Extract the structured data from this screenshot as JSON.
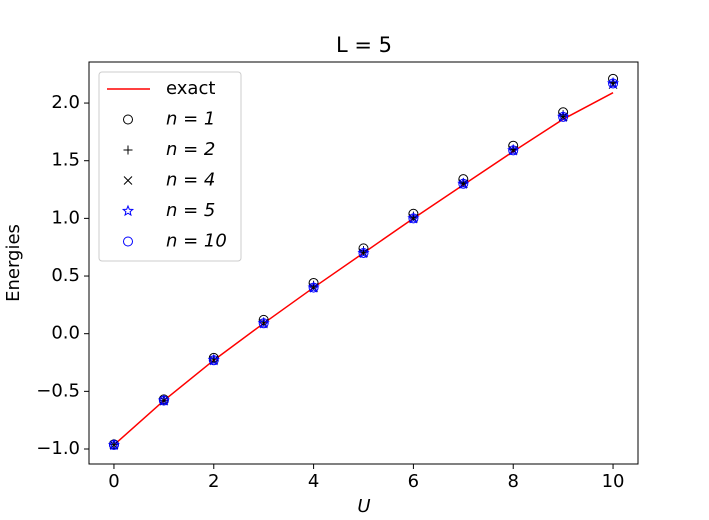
{
  "chart_data": {
    "type": "scatter",
    "title": "L = 5",
    "x_label": "U",
    "y_label": "Energies",
    "x": [
      0,
      1,
      2,
      3,
      4,
      5,
      6,
      7,
      8,
      9,
      10
    ],
    "series": [
      {
        "name": "exact",
        "style": "line",
        "color": "#ff0000",
        "values": [
          -0.965,
          -0.58,
          -0.23,
          0.09,
          0.4,
          0.7,
          1.0,
          1.29,
          1.58,
          1.86,
          2.09
        ]
      },
      {
        "name": "n = 1",
        "style": "circle",
        "color": "#000000",
        "values": [
          -0.96,
          -0.57,
          -0.21,
          0.12,
          0.44,
          0.74,
          1.04,
          1.34,
          1.63,
          1.92,
          2.21
        ]
      },
      {
        "name": "n = 2",
        "style": "plus",
        "color": "#000000",
        "values": [
          -0.96,
          -0.58,
          -0.22,
          0.1,
          0.42,
          0.72,
          1.02,
          1.31,
          1.6,
          1.9,
          2.18
        ]
      },
      {
        "name": "n = 4",
        "style": "x",
        "color": "#000000",
        "values": [
          -0.965,
          -0.58,
          -0.23,
          0.09,
          0.4,
          0.7,
          1.0,
          1.3,
          1.59,
          1.88,
          2.16
        ]
      },
      {
        "name": "n = 5",
        "style": "star",
        "color": "#0000ff",
        "values": [
          -0.965,
          -0.58,
          -0.23,
          0.09,
          0.4,
          0.7,
          1.0,
          1.3,
          1.59,
          1.88,
          2.17
        ]
      },
      {
        "name": "n = 10",
        "style": "circle",
        "color": "#0000ff",
        "values": [
          -0.965,
          -0.58,
          -0.23,
          0.09,
          0.4,
          0.7,
          1.0,
          1.3,
          1.59,
          1.88,
          2.17
        ]
      }
    ],
    "xlim": [
      -0.5,
      10.5
    ],
    "xticks": [
      0,
      2,
      4,
      6,
      8,
      10
    ],
    "ylim": [
      -1.13,
      2.356
    ],
    "yticks": [
      {
        "value": -1.0,
        "label": "−1.0"
      },
      {
        "value": -0.5,
        "label": "−0.5"
      },
      {
        "value": 0,
        "label": "0.0"
      },
      0.5,
      {
        "value": 1.0,
        "label": "1.0"
      },
      1.5,
      {
        "value": 2.0,
        "label": "2.0"
      }
    ],
    "grid": false,
    "legend_position": "upper-left"
  }
}
